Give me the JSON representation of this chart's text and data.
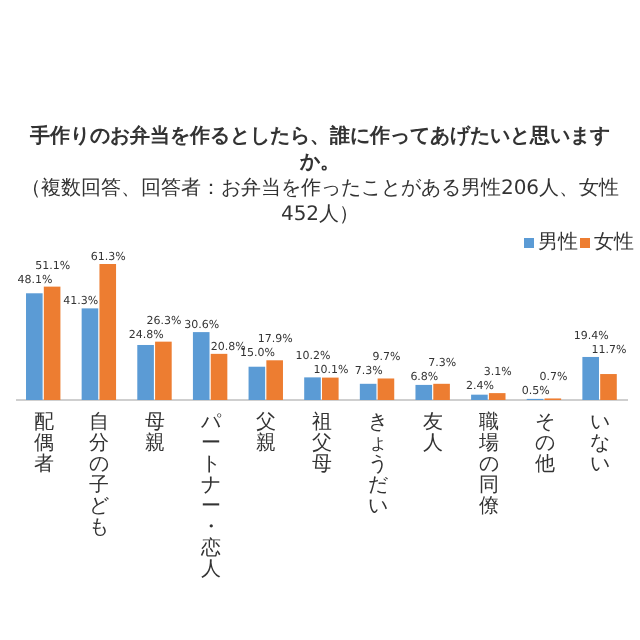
{
  "chart_data": {
    "type": "bar",
    "title": "手作りのお弁当を作るとしたら、誰に作ってあげたいと思いますか。",
    "subtitle": "（複数回答、回答者：お弁当を作ったことがある男性206人、女性452人）",
    "categories": [
      "配偶者",
      "自分の子ども",
      "母親",
      "パートナー・恋人",
      "父親",
      "祖父母",
      "きょうだい",
      "友人",
      "職場の同僚",
      "その他",
      "いない"
    ],
    "series": [
      {
        "name": "男性",
        "color": "#5b9bd5",
        "values": [
          48.1,
          41.3,
          24.8,
          30.6,
          15.0,
          10.2,
          7.3,
          6.8,
          2.4,
          0.5,
          19.4
        ],
        "value_labels": [
          "48.1%",
          "41.3%",
          "24.8%",
          "30.6%",
          "15.0%",
          "10.2%",
          "7.3%",
          "6.8%",
          "2.4%",
          "0.5%",
          "19.4%"
        ]
      },
      {
        "name": "女性",
        "color": "#ed7d31",
        "values": [
          51.1,
          61.3,
          26.3,
          20.8,
          17.9,
          10.1,
          9.7,
          7.3,
          3.1,
          0.7,
          11.7
        ],
        "value_labels": [
          "51.1%",
          "61.3%",
          "26.3%",
          "20.8%",
          "17.9%",
          "10.1%",
          "9.7%",
          "7.3%",
          "3.1%",
          "0.7%",
          "11.7%"
        ]
      }
    ],
    "legend": "top right"
  }
}
